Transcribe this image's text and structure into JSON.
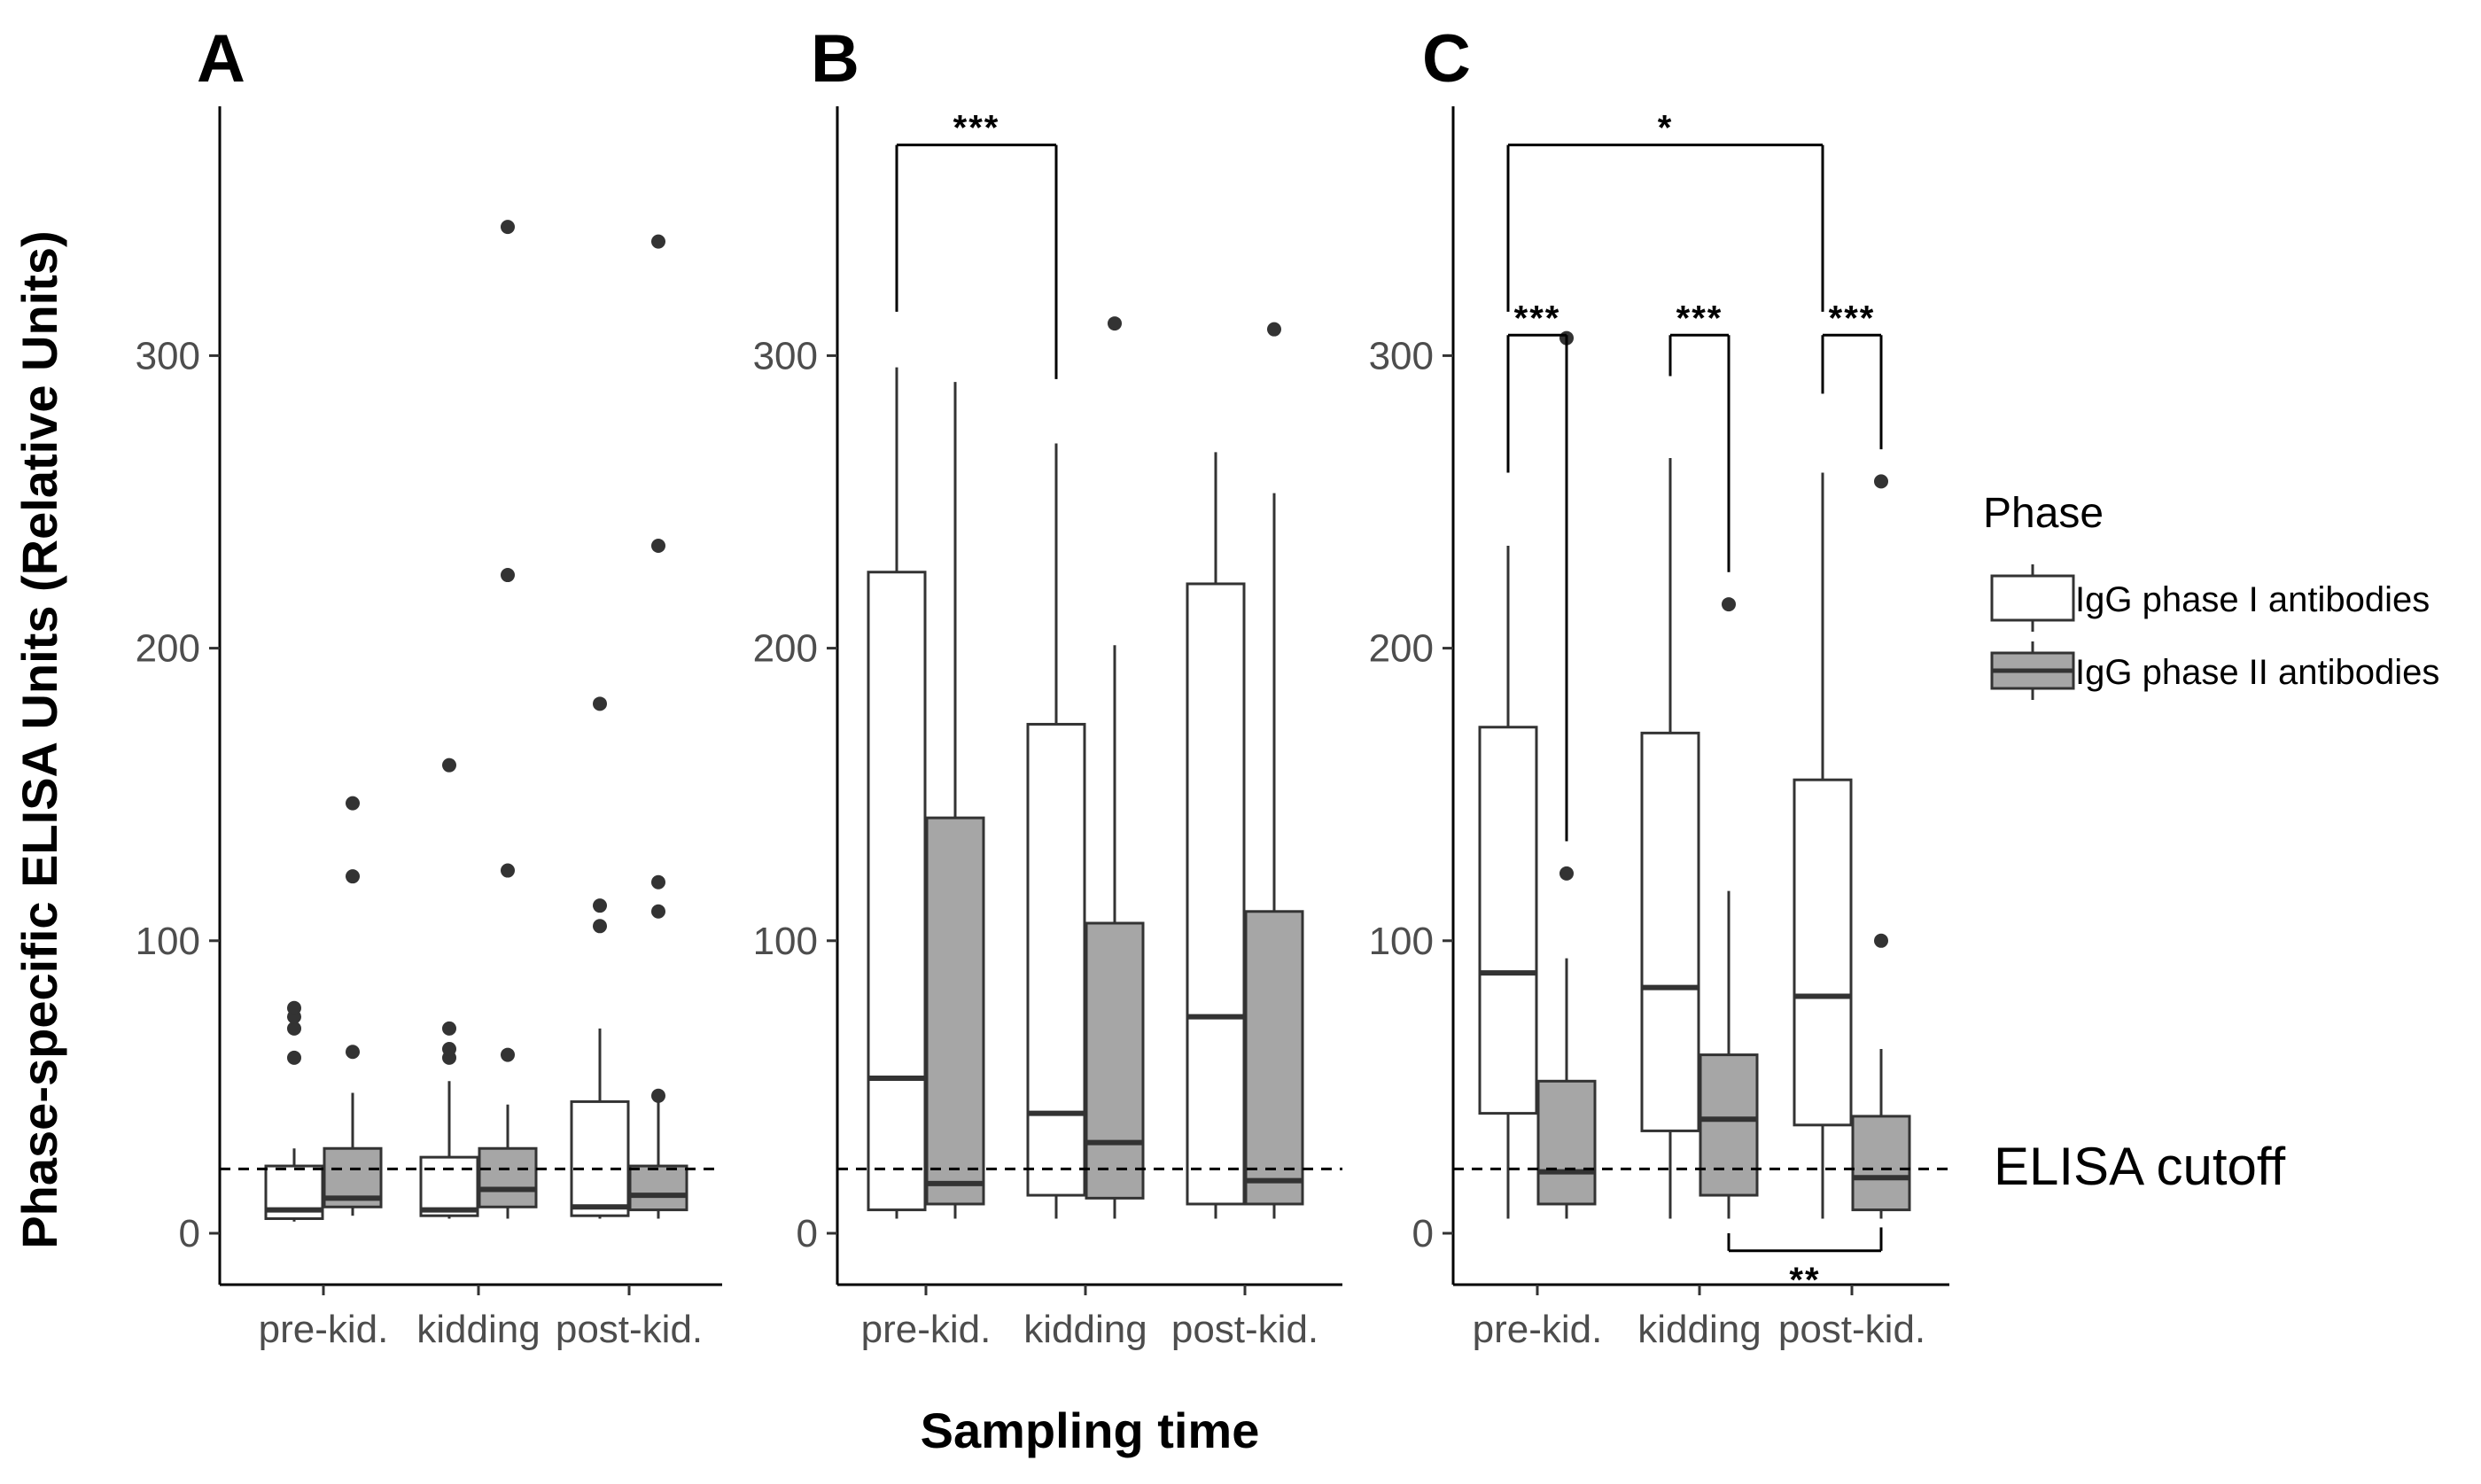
{
  "chart_data": [
    {
      "panel": "A",
      "type": "boxplot",
      "categories": [
        "pre-kid.",
        "kidding",
        "post-kid."
      ],
      "ylim": [
        -18,
        380
      ],
      "yticks": [
        0,
        100,
        200,
        300
      ],
      "cutoff": 22,
      "boxes": [
        {
          "cat": 0,
          "phase": 0,
          "lo": 4,
          "q1": 5,
          "med": 8,
          "q3": 23,
          "hi": 29,
          "outliers": [
            60,
            70,
            74,
            77
          ]
        },
        {
          "cat": 0,
          "phase": 1,
          "lo": 6,
          "q1": 9,
          "med": 12,
          "q3": 29,
          "hi": 48,
          "outliers": [
            62,
            122,
            147
          ]
        },
        {
          "cat": 1,
          "phase": 0,
          "lo": 5,
          "q1": 6,
          "med": 8,
          "q3": 26,
          "hi": 52,
          "outliers": [
            60,
            63,
            70,
            160
          ]
        },
        {
          "cat": 1,
          "phase": 1,
          "lo": 5,
          "q1": 9,
          "med": 15,
          "q3": 29,
          "hi": 44,
          "outliers": [
            61,
            124,
            225,
            344
          ]
        },
        {
          "cat": 2,
          "phase": 0,
          "lo": 5,
          "q1": 6,
          "med": 9,
          "q3": 45,
          "hi": 70,
          "outliers": [
            105,
            112,
            181
          ]
        },
        {
          "cat": 2,
          "phase": 1,
          "lo": 5,
          "q1": 8,
          "med": 13,
          "q3": 23,
          "hi": 45,
          "outliers": [
            47,
            110,
            120,
            235,
            339
          ]
        }
      ],
      "brackets": []
    },
    {
      "panel": "B",
      "type": "boxplot",
      "categories": [
        "pre-kid.",
        "kidding",
        "post-kid."
      ],
      "ylim": [
        -18,
        380
      ],
      "yticks": [
        0,
        100,
        200,
        300
      ],
      "cutoff": 22,
      "boxes": [
        {
          "cat": 0,
          "phase": 0,
          "lo": 5,
          "q1": 8,
          "med": 53,
          "q3": 226,
          "hi": 296,
          "outliers": []
        },
        {
          "cat": 0,
          "phase": 1,
          "lo": 5,
          "q1": 10,
          "med": 17,
          "q3": 142,
          "hi": 291,
          "outliers": []
        },
        {
          "cat": 1,
          "phase": 0,
          "lo": 5,
          "q1": 13,
          "med": 41,
          "q3": 174,
          "hi": 270,
          "outliers": []
        },
        {
          "cat": 1,
          "phase": 1,
          "lo": 5,
          "q1": 12,
          "med": 31,
          "q3": 106,
          "hi": 201,
          "outliers": [
            311
          ]
        },
        {
          "cat": 2,
          "phase": 0,
          "lo": 5,
          "q1": 10,
          "med": 74,
          "q3": 222,
          "hi": 267,
          "outliers": []
        },
        {
          "cat": 2,
          "phase": 1,
          "lo": 5,
          "q1": 10,
          "med": 18,
          "q3": 110,
          "hi": 253,
          "outliers": [
            309
          ]
        }
      ],
      "brackets": [
        {
          "from": [
            0,
            0
          ],
          "to": [
            1,
            0
          ],
          "y": 372,
          "drop_from": 315,
          "drop_to": 292,
          "side": "top",
          "label": "***"
        }
      ]
    },
    {
      "panel": "C",
      "type": "boxplot",
      "categories": [
        "pre-kid.",
        "kidding",
        "post-kid."
      ],
      "ylim": [
        -18,
        380
      ],
      "yticks": [
        0,
        100,
        200,
        300
      ],
      "cutoff": 22,
      "boxes": [
        {
          "cat": 0,
          "phase": 0,
          "lo": 5,
          "q1": 41,
          "med": 89,
          "q3": 173,
          "hi": 235,
          "outliers": []
        },
        {
          "cat": 0,
          "phase": 1,
          "lo": 5,
          "q1": 10,
          "med": 21,
          "q3": 52,
          "hi": 94,
          "outliers": [
            123,
            306
          ]
        },
        {
          "cat": 1,
          "phase": 0,
          "lo": 5,
          "q1": 35,
          "med": 84,
          "q3": 171,
          "hi": 265,
          "outliers": []
        },
        {
          "cat": 1,
          "phase": 1,
          "lo": 5,
          "q1": 13,
          "med": 39,
          "q3": 61,
          "hi": 117,
          "outliers": [
            215
          ]
        },
        {
          "cat": 2,
          "phase": 0,
          "lo": 5,
          "q1": 37,
          "med": 81,
          "q3": 155,
          "hi": 260,
          "outliers": []
        },
        {
          "cat": 2,
          "phase": 1,
          "lo": 5,
          "q1": 8,
          "med": 19,
          "q3": 40,
          "hi": 63,
          "outliers": [
            100,
            257
          ]
        }
      ],
      "brackets": [
        {
          "from": [
            0,
            0
          ],
          "to": [
            2,
            0
          ],
          "y": 372,
          "drop_from": 315,
          "drop_to": 315,
          "side": "top",
          "label": "*"
        },
        {
          "from": [
            0,
            0
          ],
          "to": [
            0,
            1
          ],
          "y": 307,
          "drop_from": 260,
          "drop_to": 134,
          "side": "top",
          "label": "***"
        },
        {
          "from": [
            1,
            0
          ],
          "to": [
            1,
            1
          ],
          "y": 307,
          "drop_from": 293,
          "drop_to": 226,
          "side": "top",
          "label": "***"
        },
        {
          "from": [
            2,
            0
          ],
          "to": [
            2,
            1
          ],
          "y": 307,
          "drop_from": 287,
          "drop_to": 268,
          "side": "top",
          "label": "***"
        },
        {
          "from": [
            1,
            1
          ],
          "to": [
            2,
            1
          ],
          "y": -6,
          "drop_from": 0,
          "drop_to": 2,
          "side": "bottom",
          "label": "**"
        }
      ]
    }
  ],
  "panel_letters": [
    "A",
    "B",
    "C"
  ],
  "y_axis_title": "Phase-specific ELISA Units (Relative Units)",
  "x_axis_title": "Sampling time",
  "cutoff_label": "ELISA cutoff",
  "legend": {
    "title": "Phase",
    "items": [
      {
        "label": "IgG phase I antibodies",
        "fill": "#ffffff"
      },
      {
        "label": "IgG phase II antibodies",
        "fill": "#a6a6a6"
      }
    ]
  },
  "colors": {
    "phase1_fill": "#ffffff",
    "phase2_fill": "#a6a6a6",
    "stroke": "#333333",
    "outlier": "#333333",
    "axis": "#000000"
  }
}
